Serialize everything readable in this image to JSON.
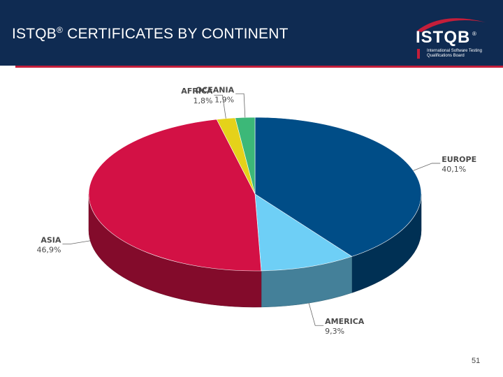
{
  "header": {
    "title": "ISTQB",
    "title_reg": "®",
    "title_rest": " CERTIFICATES BY CONTINENT",
    "logo_text": "ISTQB",
    "logo_reg": "®",
    "logo_sub": "International Software Testing Qualifications Board"
  },
  "footer": {
    "page_number": "51"
  },
  "colors": {
    "header_bg": "#0f2b52",
    "accent_red": "#c41e3a"
  },
  "chart_data": {
    "type": "pie",
    "style": "3d",
    "slices": [
      {
        "label": "EUROPE",
        "value_label": "40,1%",
        "value": 40.1,
        "color": "#004d87"
      },
      {
        "label": "AMERICA",
        "value_label": "9,3%",
        "value": 9.3,
        "color": "#6ecff6"
      },
      {
        "label": "ASIA",
        "value_label": "46,9%",
        "value": 46.9,
        "color": "#d31145"
      },
      {
        "label": "AFRICA",
        "value_label": "1,8%",
        "value": 1.8,
        "color": "#e5d21a"
      },
      {
        "label": "OCEANIA",
        "value_label": "1,9%",
        "value": 1.9,
        "color": "#3cb878"
      }
    ]
  }
}
